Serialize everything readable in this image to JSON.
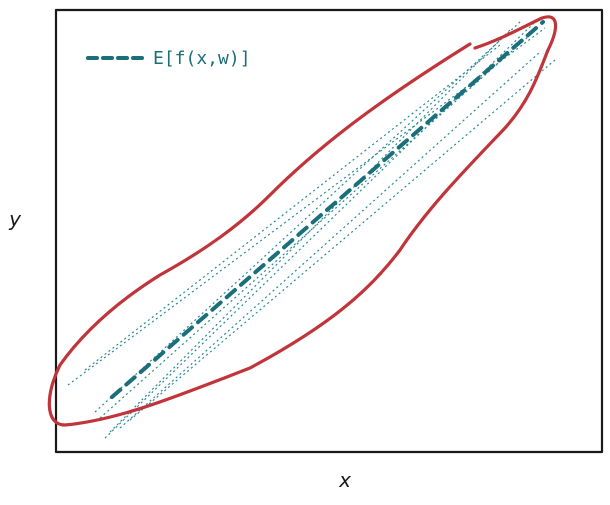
{
  "labels": {
    "x_axis": "x",
    "y_axis": "y",
    "legend": "E[f(x,w)]"
  },
  "colors": {
    "frame": "#1a1a1a",
    "mean_line": "#1a6f7a",
    "samples": "#2a8a96",
    "envelope": "#c0343a"
  },
  "elements": {
    "mean_line_style": "thick-dashed",
    "sample_lines_style": "thin-dotted",
    "sample_line_count": 8,
    "envelope_style": "hand-drawn-closed-curve"
  }
}
